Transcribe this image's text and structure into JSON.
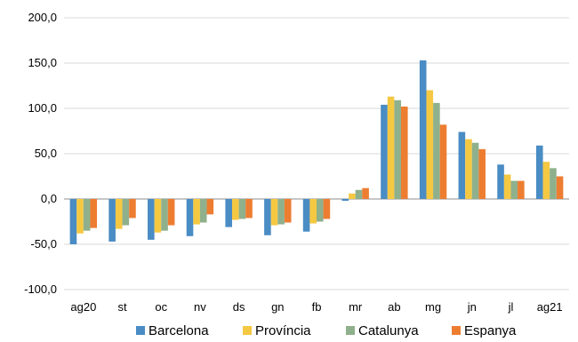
{
  "chart_data": {
    "type": "bar",
    "categories": [
      "ag20",
      "st",
      "oc",
      "nv",
      "ds",
      "gn",
      "fb",
      "mr",
      "ab",
      "mg",
      "jn",
      "jl",
      "ag21"
    ],
    "series": [
      {
        "name": "Barcelona",
        "color": "#4a8cc4",
        "values": [
          -50,
          -47,
          -45,
          -41,
          -31,
          -40,
          -36,
          -2,
          104,
          153,
          74,
          38,
          59
        ]
      },
      {
        "name": "Província",
        "color": "#f5c842",
        "values": [
          -38,
          -33,
          -37,
          -28,
          -23,
          -29,
          -27,
          6,
          113,
          120,
          66,
          27,
          41
        ]
      },
      {
        "name": "Catalunya",
        "color": "#8fb08c",
        "values": [
          -35,
          -29,
          -35,
          -26,
          -22,
          -28,
          -25,
          10,
          109,
          106,
          62,
          20,
          34
        ]
      },
      {
        "name": "Espanya",
        "color": "#ed7d31",
        "values": [
          -32,
          -21,
          -29,
          -17,
          -21,
          -26,
          -22,
          12,
          102,
          82,
          55,
          20,
          25
        ]
      }
    ],
    "y_ticks": [
      "200,0",
      "150,0",
      "100,0",
      "50,0",
      "0,0",
      "-50,0",
      "-100,0"
    ],
    "ylim": [
      -100,
      200
    ],
    "grid": true,
    "legend_position": "bottom"
  }
}
